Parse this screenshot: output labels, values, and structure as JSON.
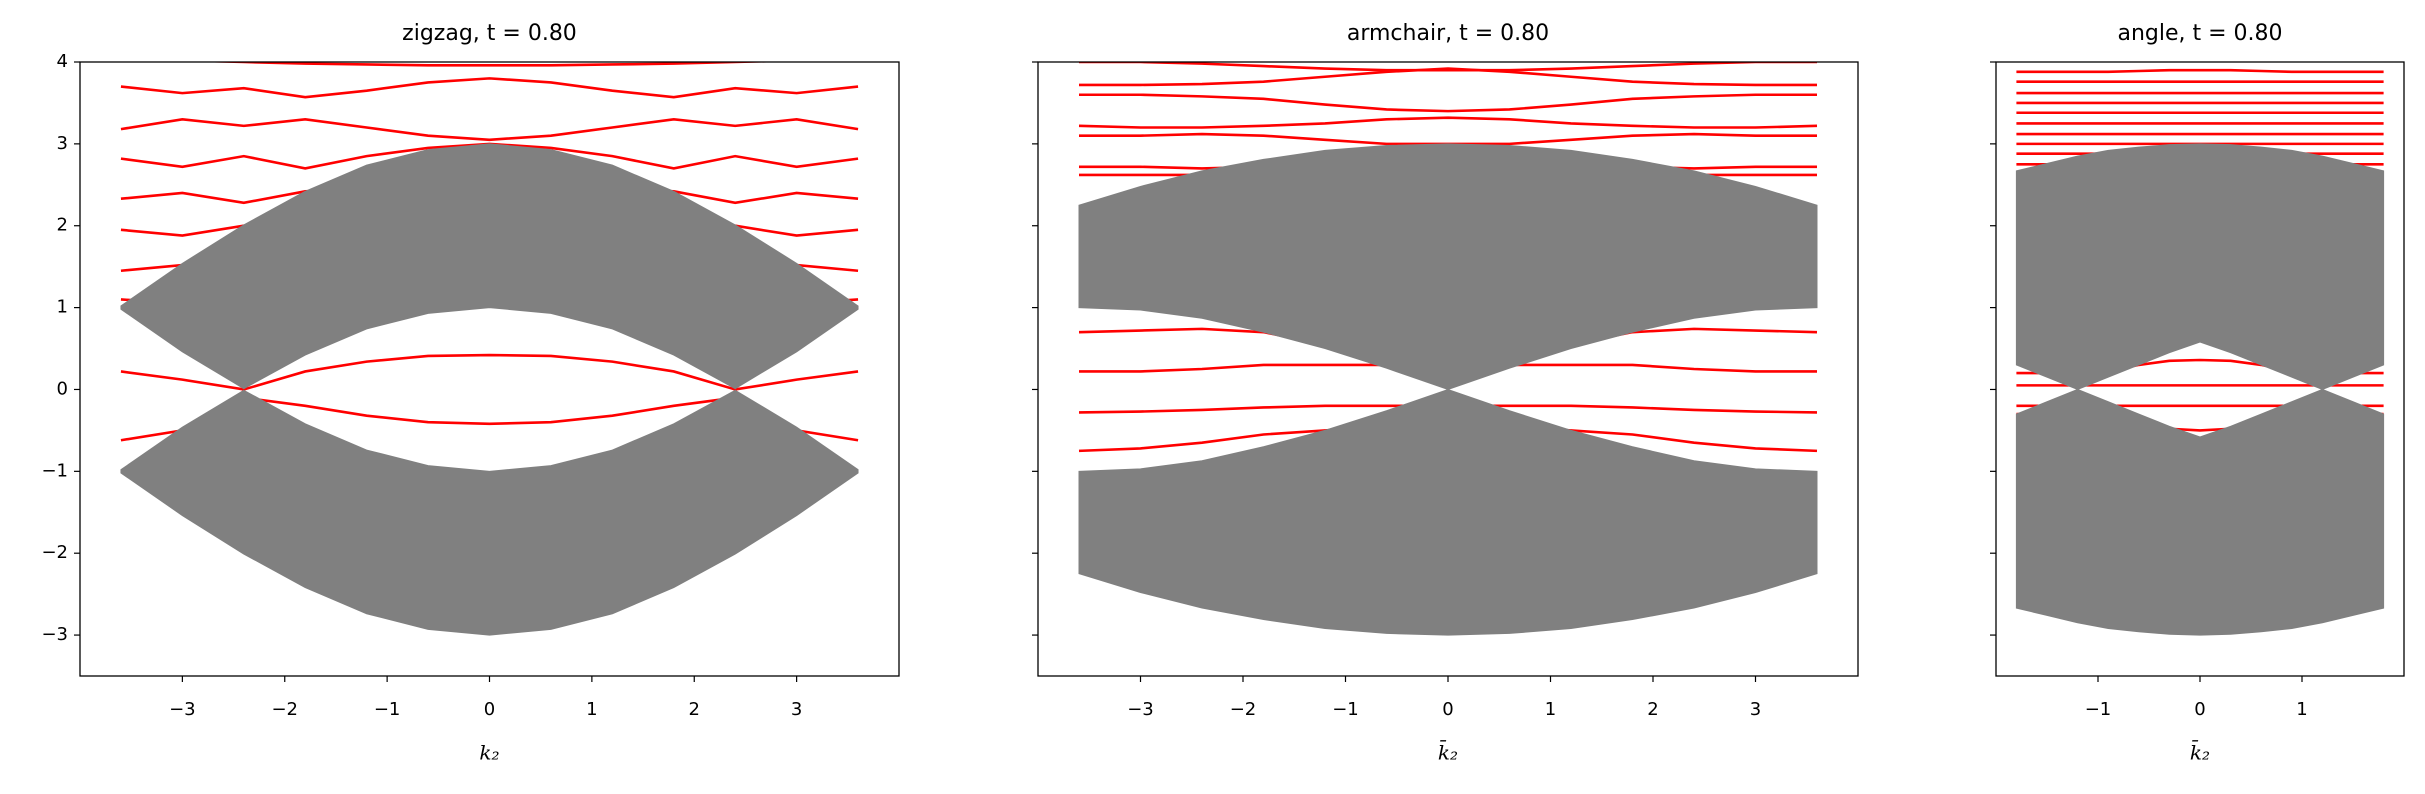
{
  "chart_data": [
    {
      "type": "line",
      "title": "zigzag, t = 0.80",
      "xlabel": "k₂",
      "ytick_labels": true,
      "x": [
        -3.6,
        -3,
        -2.4,
        -1.8,
        -1.2,
        -0.6,
        0,
        0.6,
        1.2,
        1.8,
        2.4,
        3,
        3.6
      ],
      "xlim": [
        -4,
        4
      ],
      "ylim": [
        -3.5,
        4
      ],
      "xticks": [
        {
          "value": -3,
          "label": "−3"
        },
        {
          "value": -2,
          "label": "−2"
        },
        {
          "value": -1,
          "label": "−1"
        },
        0,
        1,
        2,
        3
      ],
      "yticks": [
        {
          "value": -3,
          "label": "−3"
        },
        {
          "value": -2,
          "label": "−2"
        },
        {
          "value": -1,
          "label": "−1"
        },
        0,
        1,
        2,
        3,
        4
      ],
      "areas": [
        {
          "color": "#808080",
          "lower": [
            0.98,
            0.46,
            0.01,
            0.42,
            0.74,
            0.93,
            1,
            0.93,
            0.74,
            0.42,
            0.01,
            0.46,
            0.98
          ],
          "upper": [
            1.02,
            1.54,
            2.01,
            2.42,
            2.74,
            2.93,
            3,
            2.93,
            2.74,
            2.42,
            2.01,
            1.54,
            1.02
          ]
        },
        {
          "color": "#808080",
          "lower": [
            -1.02,
            -1.54,
            -2.01,
            -2.42,
            -2.74,
            -2.93,
            -3,
            -2.93,
            -2.74,
            -2.42,
            -2.01,
            -1.54,
            -1.02
          ],
          "upper": [
            -0.98,
            -0.46,
            -0.01,
            -0.42,
            -0.74,
            -0.93,
            -1,
            -0.93,
            -0.74,
            -0.42,
            -0.01,
            -0.46,
            -0.98
          ]
        }
      ],
      "series": [
        {
          "color": "#ff0000",
          "values": [
            4.05,
            4.02,
            4.0,
            3.98,
            3.97,
            3.96,
            3.96,
            3.96,
            3.97,
            3.98,
            4.0,
            4.02,
            4.05
          ]
        },
        {
          "color": "#ff0000",
          "values": [
            3.7,
            3.62,
            3.68,
            3.57,
            3.65,
            3.75,
            3.8,
            3.75,
            3.65,
            3.57,
            3.68,
            3.62,
            3.7
          ]
        },
        {
          "color": "#ff0000",
          "values": [
            3.18,
            3.3,
            3.22,
            3.3,
            3.2,
            3.1,
            3.05,
            3.1,
            3.2,
            3.3,
            3.22,
            3.3,
            3.18
          ]
        },
        {
          "color": "#ff0000",
          "values": [
            2.82,
            2.72,
            2.85,
            2.7,
            2.85,
            2.95,
            3,
            2.95,
            2.85,
            2.7,
            2.85,
            2.72,
            2.82
          ]
        },
        {
          "color": "#ff0000",
          "values": [
            2.33,
            2.4,
            2.28,
            2.42,
            2.45,
            2.5,
            2.5,
            2.5,
            2.45,
            2.42,
            2.28,
            2.4,
            2.33
          ]
        },
        {
          "color": "#ff0000",
          "values": [
            1.95,
            1.88,
            2.0,
            1.9,
            1.95,
            2,
            2,
            2,
            1.95,
            1.9,
            2.0,
            1.88,
            1.95
          ]
        },
        {
          "color": "#ff0000",
          "values": [
            1.45,
            1.52,
            1.42,
            1.5,
            1.5,
            1.5,
            1.5,
            1.5,
            1.5,
            1.5,
            1.42,
            1.52,
            1.45
          ]
        },
        {
          "color": "#ff0000",
          "values": [
            1.1,
            1.05,
            1.1,
            1.05,
            1.05,
            1.05,
            1.05,
            1.05,
            1.05,
            1.05,
            1.1,
            1.05,
            1.1
          ]
        },
        {
          "color": "#ff0000",
          "values": [
            0.22,
            0.12,
            0.0,
            0.22,
            0.34,
            0.41,
            0.42,
            0.41,
            0.34,
            0.22,
            0.0,
            0.12,
            0.22
          ]
        },
        {
          "color": "#ff0000",
          "values": [
            -0.62,
            -0.5,
            -0.1,
            -0.2,
            -0.32,
            -0.4,
            -0.42,
            -0.4,
            -0.32,
            -0.2,
            -0.1,
            -0.5,
            -0.62
          ]
        }
      ]
    },
    {
      "type": "line",
      "title": "armchair, t = 0.80",
      "xlabel": "k̄₂",
      "ytick_labels": false,
      "x": [
        -3.6,
        -3,
        -2.4,
        -1.8,
        -1.2,
        -0.6,
        0,
        0.6,
        1.2,
        1.8,
        2.4,
        3,
        3.6
      ],
      "xlim": [
        -4,
        4
      ],
      "ylim": [
        -3.5,
        4
      ],
      "xticks": [
        {
          "value": -3,
          "label": "−3"
        },
        {
          "value": -2,
          "label": "−2"
        },
        {
          "value": -1,
          "label": "−1"
        },
        0,
        1,
        2,
        3
      ],
      "yticks": [
        -3,
        -2,
        -1,
        0,
        1,
        2,
        3,
        4
      ],
      "areas": [
        {
          "color": "#808080",
          "lower": [
            1,
            0.97,
            0.87,
            0.7,
            0.5,
            0.26,
            0,
            0.26,
            0.5,
            0.7,
            0.87,
            0.97,
            1
          ],
          "upper": [
            2.25,
            2.48,
            2.67,
            2.81,
            2.92,
            2.98,
            3,
            2.98,
            2.92,
            2.81,
            2.67,
            2.48,
            2.25
          ]
        },
        {
          "color": "#808080",
          "lower": [
            -2.25,
            -2.48,
            -2.67,
            -2.81,
            -2.92,
            -2.98,
            -3,
            -2.98,
            -2.92,
            -2.81,
            -2.67,
            -2.48,
            -2.25
          ],
          "upper": [
            -1,
            -0.97,
            -0.87,
            -0.7,
            -0.5,
            -0.26,
            0,
            -0.26,
            -0.5,
            -0.7,
            -0.87,
            -0.97,
            -1
          ]
        }
      ],
      "series": [
        {
          "color": "#ff0000",
          "values": [
            4.0,
            4.0,
            3.98,
            3.95,
            3.92,
            3.9,
            3.9,
            3.9,
            3.92,
            3.95,
            3.98,
            4.0,
            4.0
          ]
        },
        {
          "color": "#ff0000",
          "values": [
            3.72,
            3.72,
            3.73,
            3.76,
            3.82,
            3.88,
            3.92,
            3.88,
            3.82,
            3.76,
            3.73,
            3.72,
            3.72
          ]
        },
        {
          "color": "#ff0000",
          "values": [
            3.6,
            3.6,
            3.58,
            3.55,
            3.48,
            3.42,
            3.4,
            3.42,
            3.48,
            3.55,
            3.58,
            3.6,
            3.6
          ]
        },
        {
          "color": "#ff0000",
          "values": [
            3.22,
            3.2,
            3.2,
            3.22,
            3.25,
            3.3,
            3.32,
            3.3,
            3.25,
            3.22,
            3.2,
            3.2,
            3.22
          ]
        },
        {
          "color": "#ff0000",
          "values": [
            3.1,
            3.1,
            3.12,
            3.1,
            3.05,
            3.0,
            3.0,
            3.0,
            3.05,
            3.1,
            3.12,
            3.1,
            3.1
          ]
        },
        {
          "color": "#ff0000",
          "values": [
            2.72,
            2.72,
            2.7,
            2.72,
            2.72,
            2.72,
            2.72,
            2.72,
            2.72,
            2.72,
            2.7,
            2.72,
            2.72
          ]
        },
        {
          "color": "#ff0000",
          "values": [
            2.62,
            2.62,
            2.62,
            2.62,
            2.62,
            2.62,
            2.62,
            2.62,
            2.62,
            2.62,
            2.62,
            2.62,
            2.62
          ]
        },
        {
          "color": "#ff0000",
          "values": [
            0.7,
            0.72,
            0.74,
            0.7,
            0.55,
            0.5,
            0.5,
            0.5,
            0.55,
            0.7,
            0.74,
            0.72,
            0.7
          ]
        },
        {
          "color": "#ff0000",
          "values": [
            0.22,
            0.22,
            0.25,
            0.3,
            0.3,
            0.3,
            0.3,
            0.3,
            0.3,
            0.3,
            0.25,
            0.22,
            0.22
          ]
        },
        {
          "color": "#ff0000",
          "values": [
            -0.28,
            -0.27,
            -0.25,
            -0.22,
            -0.2,
            -0.2,
            -0.2,
            -0.2,
            -0.2,
            -0.22,
            -0.25,
            -0.27,
            -0.28
          ]
        },
        {
          "color": "#ff0000",
          "values": [
            -0.75,
            -0.72,
            -0.65,
            -0.55,
            -0.5,
            -0.45,
            -0.45,
            -0.45,
            -0.5,
            -0.55,
            -0.65,
            -0.72,
            -0.75
          ]
        }
      ]
    },
    {
      "type": "line",
      "title": "angle, t = 0.80",
      "xlabel": "k̄₂",
      "ytick_labels": false,
      "x": [
        -1.8,
        -1.5,
        -1.2,
        -0.9,
        -0.6,
        -0.3,
        0,
        0.3,
        0.6,
        0.9,
        1.2,
        1.5,
        1.8
      ],
      "xlim": [
        -2,
        2
      ],
      "ylim": [
        -3.5,
        4
      ],
      "xticks": [
        {
          "value": -1,
          "label": "−1"
        },
        0,
        1
      ],
      "yticks": [
        -3,
        -2,
        -1,
        0,
        1,
        2,
        3,
        4
      ],
      "areas": [
        {
          "color": "#808080",
          "lower": [
            0.3,
            0.15,
            0.0,
            0.15,
            0.3,
            0.45,
            0.58,
            0.45,
            0.3,
            0.15,
            0.0,
            0.15,
            0.3
          ],
          "upper": [
            2.67,
            2.76,
            2.85,
            2.92,
            2.96,
            2.99,
            3,
            2.99,
            2.96,
            2.92,
            2.85,
            2.76,
            2.67
          ]
        },
        {
          "color": "#808080",
          "lower": [
            -2.67,
            -2.76,
            -2.85,
            -2.92,
            -2.96,
            -2.99,
            -3,
            -2.99,
            -2.96,
            -2.92,
            -2.85,
            -2.76,
            -2.67
          ],
          "upper": [
            -0.3,
            -0.15,
            0.0,
            -0.15,
            -0.3,
            -0.45,
            -0.58,
            -0.45,
            -0.3,
            -0.15,
            0.0,
            -0.15,
            -0.3
          ]
        }
      ],
      "series": [
        {
          "color": "#ff0000",
          "values": [
            3.88,
            3.88,
            3.88,
            3.88,
            3.89,
            3.9,
            3.9,
            3.9,
            3.89,
            3.88,
            3.88,
            3.88,
            3.88
          ]
        },
        {
          "color": "#ff0000",
          "values": [
            3.76,
            3.76,
            3.76,
            3.76,
            3.76,
            3.76,
            3.76,
            3.76,
            3.76,
            3.76,
            3.76,
            3.76,
            3.76
          ]
        },
        {
          "color": "#ff0000",
          "values": [
            3.62,
            3.62,
            3.62,
            3.62,
            3.62,
            3.62,
            3.62,
            3.62,
            3.62,
            3.62,
            3.62,
            3.62,
            3.62
          ]
        },
        {
          "color": "#ff0000",
          "values": [
            3.5,
            3.5,
            3.5,
            3.5,
            3.5,
            3.5,
            3.5,
            3.5,
            3.5,
            3.5,
            3.5,
            3.5,
            3.5
          ]
        },
        {
          "color": "#ff0000",
          "values": [
            3.38,
            3.38,
            3.38,
            3.38,
            3.38,
            3.38,
            3.38,
            3.38,
            3.38,
            3.38,
            3.38,
            3.38,
            3.38
          ]
        },
        {
          "color": "#ff0000",
          "values": [
            3.25,
            3.25,
            3.25,
            3.25,
            3.25,
            3.25,
            3.25,
            3.25,
            3.25,
            3.25,
            3.25,
            3.25,
            3.25
          ]
        },
        {
          "color": "#ff0000",
          "values": [
            3.12,
            3.12,
            3.12,
            3.12,
            3.12,
            3.12,
            3.12,
            3.12,
            3.12,
            3.12,
            3.12,
            3.12,
            3.12
          ]
        },
        {
          "color": "#ff0000",
          "values": [
            3.0,
            3.0,
            3.0,
            3.0,
            3.0,
            3.0,
            3.0,
            3.0,
            3.0,
            3.0,
            3.0,
            3.0,
            3.0
          ]
        },
        {
          "color": "#ff0000",
          "values": [
            2.88,
            2.88,
            2.88,
            2.88,
            2.88,
            2.88,
            2.88,
            2.88,
            2.88,
            2.88,
            2.88,
            2.88,
            2.88
          ]
        },
        {
          "color": "#ff0000",
          "values": [
            2.75,
            2.75,
            2.75,
            2.75,
            2.75,
            2.75,
            2.75,
            2.75,
            2.75,
            2.75,
            2.75,
            2.75,
            2.75
          ]
        },
        {
          "color": "#ff0000",
          "values": [
            0.2,
            0.2,
            0.2,
            0.22,
            0.3,
            0.35,
            0.36,
            0.35,
            0.3,
            0.22,
            0.2,
            0.2,
            0.2
          ]
        },
        {
          "color": "#ff0000",
          "values": [
            0.05,
            0.05,
            0.05,
            0.05,
            0.05,
            0.05,
            0.05,
            0.05,
            0.05,
            0.05,
            0.05,
            0.05,
            0.05
          ]
        },
        {
          "color": "#ff0000",
          "values": [
            -0.2,
            -0.2,
            -0.2,
            -0.2,
            -0.2,
            -0.2,
            -0.2,
            -0.2,
            -0.2,
            -0.2,
            -0.2,
            -0.2,
            -0.2
          ]
        },
        {
          "color": "#ff0000",
          "values": [
            -0.3,
            -0.3,
            -0.32,
            -0.36,
            -0.42,
            -0.48,
            -0.5,
            -0.48,
            -0.42,
            -0.36,
            -0.32,
            -0.3,
            -0.3
          ]
        }
      ]
    }
  ]
}
